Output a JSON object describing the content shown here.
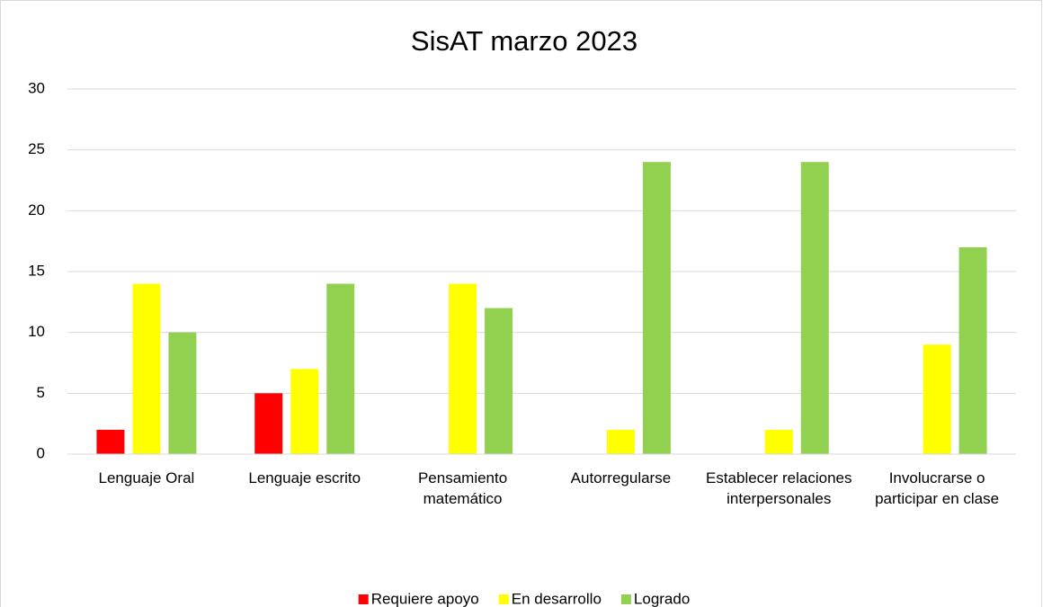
{
  "chart_data": {
    "type": "bar",
    "title": "SisAT marzo 2023",
    "categories": [
      "Lenguaje Oral",
      "Lenguaje escrito",
      "Pensamiento matemático",
      "Autorregularse",
      "Establecer relaciones interpersonales",
      "Involucrarse o participar en clase"
    ],
    "series": [
      {
        "name": "Requiere apoyo",
        "color": "#ff0000",
        "values": [
          2,
          5,
          0,
          0,
          0,
          0
        ]
      },
      {
        "name": "En desarrollo",
        "color": "#ffff00",
        "values": [
          14,
          7,
          14,
          2,
          2,
          9
        ]
      },
      {
        "name": "Logrado",
        "color": "#92d050",
        "values": [
          10,
          14,
          12,
          24,
          24,
          17
        ]
      }
    ],
    "ylim": [
      0,
      30
    ],
    "yticks": [
      0,
      5,
      10,
      15,
      20,
      25,
      30
    ],
    "grid": true,
    "legend": "bottom"
  }
}
